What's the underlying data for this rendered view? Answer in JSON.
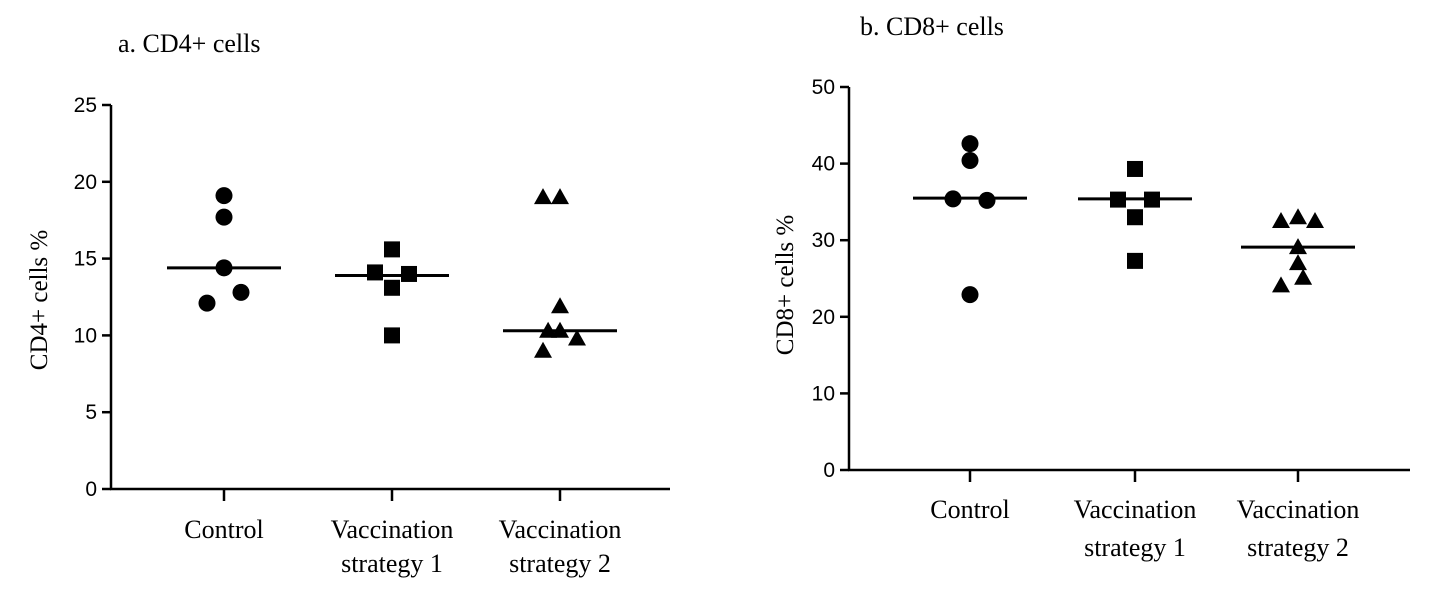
{
  "chart_data": [
    {
      "type": "scatter",
      "title": "a. CD4+ cells",
      "xlabel": "",
      "ylabel": "CD4+ cells  %",
      "ylim": [
        0,
        25
      ],
      "yticks": [
        0,
        5,
        10,
        15,
        20,
        25
      ],
      "categories": [
        {
          "line1": "Control",
          "line2": ""
        },
        {
          "line1": "Vaccination",
          "line2": "strategy 1"
        },
        {
          "line1": "Vaccination",
          "line2": "strategy 2"
        }
      ],
      "series": [
        {
          "name": "Control",
          "marker": "circle",
          "median": 14.4,
          "points": [
            {
              "dx": 0,
              "y": 19.1
            },
            {
              "dx": 0,
              "y": 17.7
            },
            {
              "dx": 0,
              "y": 14.4
            },
            {
              "dx": -1,
              "y": 12.1
            },
            {
              "dx": 1,
              "y": 12.8
            }
          ]
        },
        {
          "name": "Vaccination strategy 1",
          "marker": "square",
          "median": 13.9,
          "points": [
            {
              "dx": 0,
              "y": 15.6
            },
            {
              "dx": -1,
              "y": 14.1
            },
            {
              "dx": 1,
              "y": 14.0
            },
            {
              "dx": 0,
              "y": 13.1
            },
            {
              "dx": 0,
              "y": 10.0
            }
          ]
        },
        {
          "name": "Vaccination strategy 2",
          "marker": "triangle",
          "median": 10.3,
          "points": [
            {
              "dx": -1,
              "y": 19.0
            },
            {
              "dx": 0,
              "y": 19.0
            },
            {
              "dx": 0,
              "y": 11.9
            },
            {
              "dx": -0.7,
              "y": 10.3
            },
            {
              "dx": 0,
              "y": 10.3
            },
            {
              "dx": -1,
              "y": 9.0
            },
            {
              "dx": 1,
              "y": 9.8
            }
          ]
        }
      ]
    },
    {
      "type": "scatter",
      "title": "b. CD8+ cells",
      "xlabel": "",
      "ylabel": "CD8+ cells  %",
      "ylim": [
        0,
        50
      ],
      "yticks": [
        0,
        10,
        20,
        30,
        40,
        50
      ],
      "categories": [
        {
          "line1": "Control",
          "line2": ""
        },
        {
          "line1": "Vaccination",
          "line2": "strategy 1"
        },
        {
          "line1": "Vaccination",
          "line2": "strategy 2"
        }
      ],
      "series": [
        {
          "name": "Control",
          "marker": "circle",
          "median": 35.5,
          "points": [
            {
              "dx": 0,
              "y": 42.6
            },
            {
              "dx": 0,
              "y": 40.4
            },
            {
              "dx": -1,
              "y": 35.4
            },
            {
              "dx": 1,
              "y": 35.2
            },
            {
              "dx": 0,
              "y": 22.9
            }
          ]
        },
        {
          "name": "Vaccination strategy 1",
          "marker": "square",
          "median": 35.4,
          "points": [
            {
              "dx": 0,
              "y": 39.3
            },
            {
              "dx": -1,
              "y": 35.3
            },
            {
              "dx": 1,
              "y": 35.3
            },
            {
              "dx": 0,
              "y": 33.0
            },
            {
              "dx": 0,
              "y": 27.3
            }
          ]
        },
        {
          "name": "Vaccination strategy 2",
          "marker": "triangle",
          "median": 29.1,
          "points": [
            {
              "dx": -1,
              "y": 32.5
            },
            {
              "dx": 0,
              "y": 33.0
            },
            {
              "dx": 1,
              "y": 32.5
            },
            {
              "dx": 0,
              "y": 29.1
            },
            {
              "dx": 0,
              "y": 27.0
            },
            {
              "dx": -1,
              "y": 24.1
            },
            {
              "dx": 0.3,
              "y": 25.1
            }
          ]
        }
      ]
    }
  ]
}
